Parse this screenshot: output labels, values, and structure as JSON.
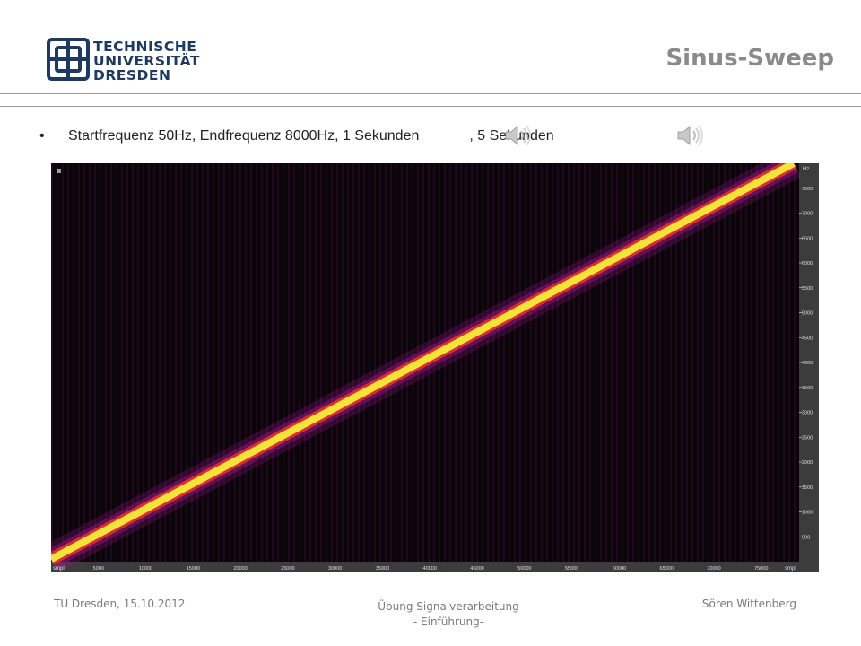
{
  "header": {
    "logo_lines": [
      "TECHNISCHE",
      "UNIVERSITÄT",
      "DRESDEN"
    ],
    "slide_title": "Sinus-Sweep"
  },
  "bullet": {
    "text_1": "Startfrequenz 50Hz, Endfrequenz 8000Hz, 1 Sekunden",
    "text_2": ", 5 Sekunden"
  },
  "spectrogram": {
    "y_unit": "Hz",
    "y_ticks": [
      7500,
      7000,
      6500,
      6000,
      5500,
      5000,
      4500,
      4000,
      3500,
      3000,
      2500,
      2000,
      1500,
      1000,
      500
    ],
    "y_range": [
      0,
      8000
    ],
    "x_unit": "smpl",
    "x_ticks": [
      5000,
      10000,
      15000,
      20000,
      25000,
      30000,
      35000,
      40000,
      45000,
      50000,
      55000,
      60000,
      65000,
      70000,
      75000
    ],
    "x_range": [
      0,
      79000
    ],
    "sweep_start_hz": 50,
    "sweep_end_hz": 8000,
    "colors": {
      "background": "#0a0508",
      "line_core": "#f4e33a",
      "line_edge": "#e4322b",
      "halo": "#a0198c",
      "axis_panel": "#3c3c3c",
      "axis_text": "#e0e0e0"
    }
  },
  "footer": {
    "left": "TU Dresden, 15.10.2012",
    "mid_1": "Übung Signalverarbeitung",
    "mid_2": "- Einführung-",
    "right": "Sören Wittenberg"
  },
  "icons": {
    "speaker_1": "speaker-icon",
    "speaker_2": "speaker-icon"
  }
}
